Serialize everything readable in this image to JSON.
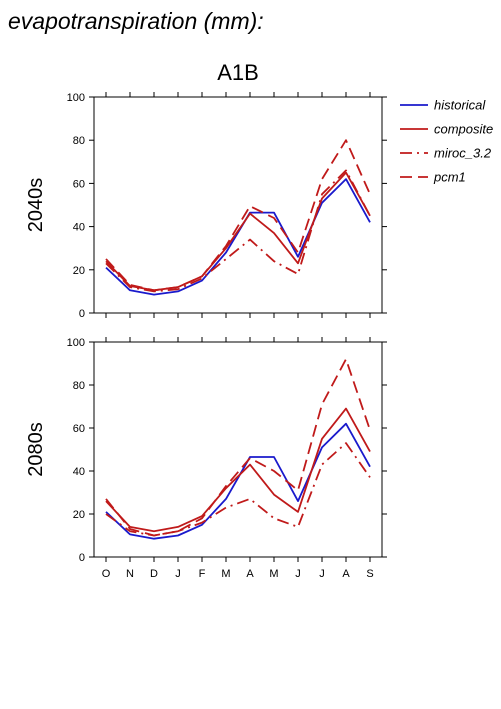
{
  "page_title": "evapotranspiration (mm):",
  "colors": {
    "historical": "#1a1acc",
    "projection": "#c01a1a",
    "axis": "#000000"
  },
  "legend": [
    {
      "label": "historical",
      "style": "solid",
      "color": "#1a1acc"
    },
    {
      "label": "composite",
      "style": "solid",
      "color": "#c01a1a"
    },
    {
      "label": "miroc_3.2",
      "style": "dashdot",
      "color": "#c01a1a"
    },
    {
      "label": "pcm1",
      "style": "dashed",
      "color": "#c01a1a"
    }
  ],
  "chart_data": [
    {
      "type": "line",
      "title": "A1B",
      "ylabel": "2040s",
      "categories": [
        "O",
        "N",
        "D",
        "J",
        "F",
        "M",
        "A",
        "M",
        "J",
        "J",
        "A",
        "S"
      ],
      "ylim": [
        0,
        100
      ],
      "yticks": [
        0,
        20,
        40,
        60,
        80,
        100
      ],
      "series": [
        {
          "name": "historical",
          "style": "solid",
          "values": [
            21,
            10.5,
            8.5,
            10,
            15,
            28,
            46.5,
            46.5,
            26,
            51,
            62,
            42
          ]
        },
        {
          "name": "composite",
          "style": "solid",
          "values": [
            24,
            12.5,
            10.5,
            12,
            17,
            30,
            46,
            37,
            23,
            53,
            65,
            45
          ]
        },
        {
          "name": "miroc_3.2",
          "style": "dashdot",
          "values": [
            23,
            12,
            10,
            11,
            16,
            25,
            34,
            24,
            18,
            55,
            66,
            45
          ]
        },
        {
          "name": "pcm1",
          "style": "dashed",
          "values": [
            25,
            13,
            10.5,
            12,
            17,
            31,
            49.5,
            44,
            28,
            62,
            80,
            55
          ]
        }
      ]
    },
    {
      "type": "line",
      "title": "",
      "ylabel": "2080s",
      "categories": [
        "O",
        "N",
        "D",
        "J",
        "F",
        "M",
        "A",
        "M",
        "J",
        "J",
        "A",
        "S"
      ],
      "ylim": [
        0,
        100
      ],
      "yticks": [
        0,
        20,
        40,
        60,
        80,
        100
      ],
      "series": [
        {
          "name": "historical",
          "style": "solid",
          "values": [
            21,
            10.5,
            8.5,
            10,
            15,
            27,
            46.5,
            46.5,
            26,
            51,
            62,
            42
          ]
        },
        {
          "name": "composite",
          "style": "solid",
          "values": [
            26,
            14,
            12,
            14,
            19,
            32,
            43,
            29,
            21,
            55,
            69,
            49
          ]
        },
        {
          "name": "miroc_3.2",
          "style": "dashdot",
          "values": [
            20,
            12,
            10,
            12,
            16,
            23,
            27,
            18,
            14,
            43,
            53,
            37
          ]
        },
        {
          "name": "pcm1",
          "style": "dashed",
          "values": [
            27,
            13,
            10,
            12,
            18,
            33,
            46,
            40,
            31,
            71,
            92,
            59
          ]
        }
      ]
    }
  ]
}
